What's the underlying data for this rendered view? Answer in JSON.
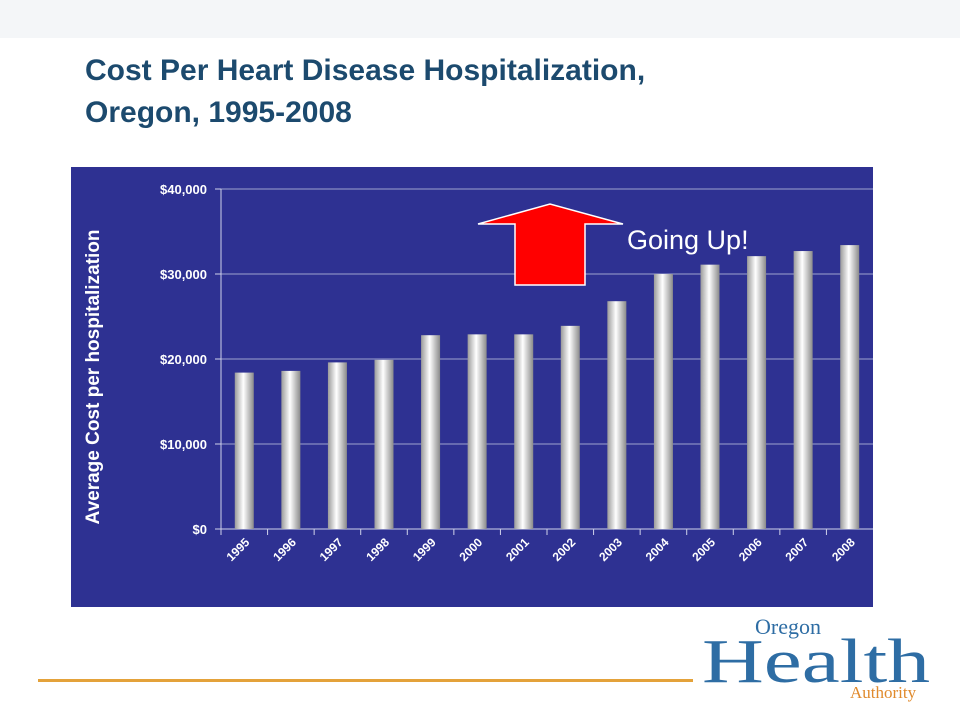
{
  "slide": {
    "title_line1": "Cost Per Heart Disease Hospitalization,",
    "title_line2": "Oregon, 1995-2008"
  },
  "colors": {
    "title": "#1c4a6e",
    "chart_background": "#2e3192",
    "bar_fill": "#e6e6e6",
    "arrow": "#ff0000",
    "footer_line": "#e4a23a",
    "logo_blue": "#2e6da4",
    "logo_orange": "#e08a2c"
  },
  "annotation": {
    "text": "Going Up!",
    "icon": "up-arrow-icon"
  },
  "logo": {
    "word_top": "Oregon",
    "word_main": "Health",
    "word_bottom": "Authority"
  },
  "chart_data": {
    "type": "bar",
    "title": "",
    "xlabel": "",
    "ylabel": "Average Cost per  hospitalization",
    "categories": [
      "1995",
      "1996",
      "1997",
      "1998",
      "1999",
      "2000",
      "2001",
      "2002",
      "2003",
      "2004",
      "2005",
      "2006",
      "2007",
      "2008"
    ],
    "values": [
      18400,
      18600,
      19600,
      19900,
      22800,
      22900,
      22900,
      23900,
      26800,
      30000,
      31100,
      32100,
      32700,
      33400
    ],
    "ylim": [
      0,
      40000
    ],
    "y_ticks": [
      0,
      10000,
      20000,
      30000,
      40000
    ],
    "y_tick_labels": [
      "$0",
      "$10,000",
      "$20,000",
      "$30,000",
      "$40,000"
    ],
    "grid": "horizontal",
    "legend": "none"
  }
}
